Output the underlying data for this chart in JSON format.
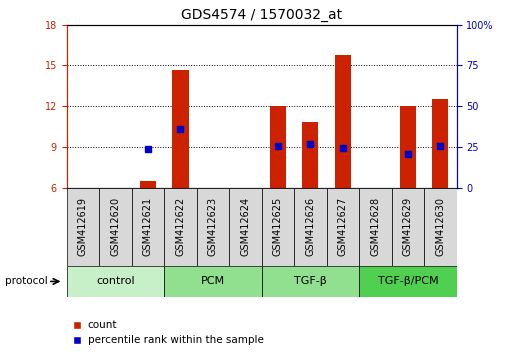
{
  "title": "GDS4574 / 1570032_at",
  "samples": [
    "GSM412619",
    "GSM412620",
    "GSM412621",
    "GSM412622",
    "GSM412623",
    "GSM412624",
    "GSM412625",
    "GSM412626",
    "GSM412627",
    "GSM412628",
    "GSM412629",
    "GSM412630"
  ],
  "count_values": [
    null,
    null,
    6.5,
    14.7,
    null,
    null,
    12.0,
    10.8,
    15.8,
    null,
    12.0,
    12.5
  ],
  "percentile_values": [
    null,
    null,
    8.83,
    10.33,
    null,
    null,
    9.1,
    9.2,
    8.9,
    null,
    8.5,
    9.1
  ],
  "ylim": [
    6,
    18
  ],
  "yticks": [
    6,
    9,
    12,
    15,
    18
  ],
  "right_yticks": [
    0,
    25,
    50,
    75,
    100
  ],
  "right_yticklabels": [
    "0",
    "25",
    "50",
    "75",
    "100%"
  ],
  "groups": [
    {
      "label": "control",
      "start": 0,
      "end": 3,
      "color": "#c8f0c8"
    },
    {
      "label": "PCM",
      "start": 3,
      "end": 6,
      "color": "#90e090"
    },
    {
      "label": "TGF-β",
      "start": 6,
      "end": 9,
      "color": "#90e090"
    },
    {
      "label": "TGF-β/PCM",
      "start": 9,
      "end": 12,
      "color": "#50d050"
    }
  ],
  "bar_color": "#cc2200",
  "dot_color": "#0000cc",
  "bar_width": 0.5,
  "base_value": 6,
  "background_color": "#ffffff",
  "grid_color": "#000000",
  "left_axis_color": "#cc2200",
  "right_axis_color": "#0000cc",
  "title_fontsize": 10,
  "tick_fontsize": 7,
  "label_fontsize": 7.5,
  "group_label_fontsize": 8,
  "protocol_label": "protocol"
}
